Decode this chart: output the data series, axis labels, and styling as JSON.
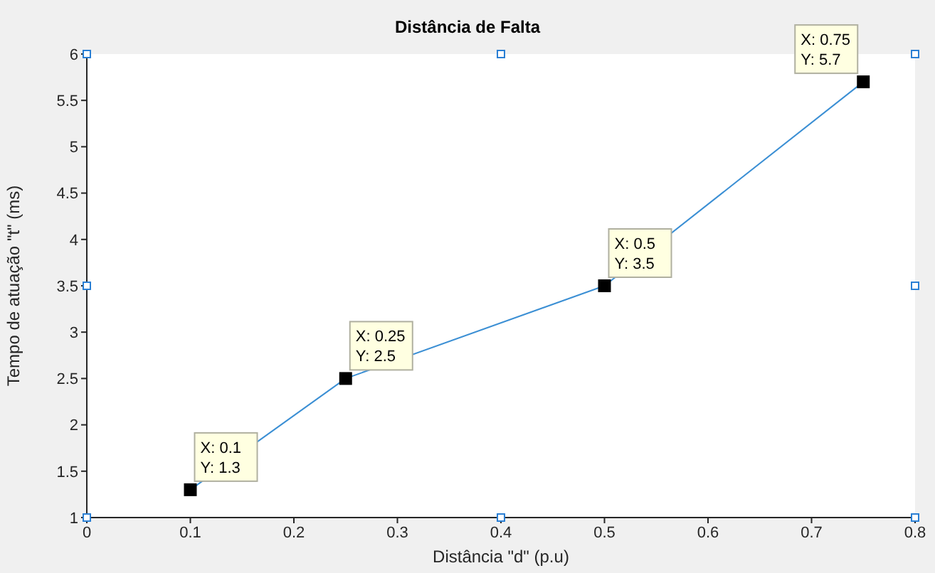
{
  "chart_data": {
    "type": "line",
    "title": "Distância de Falta",
    "xlabel": "Distância \"d\" (p.u)",
    "ylabel": "Tempo de atuação \"t\" (ms)",
    "x": [
      0.1,
      0.25,
      0.5,
      0.75
    ],
    "series": [
      {
        "color": "#3b8fd4",
        "values": [
          1.3,
          2.5,
          3.5,
          5.7
        ]
      }
    ],
    "xlim": [
      0,
      0.8
    ],
    "xticks": [
      0,
      0.1,
      0.2,
      0.3,
      0.4,
      0.5,
      0.6,
      0.7,
      0.8
    ],
    "ylim": [
      1,
      6
    ],
    "yticks": [
      1,
      1.5,
      2,
      2.5,
      3,
      3.5,
      4,
      4.5,
      5,
      5.5,
      6
    ],
    "grid": false,
    "legend": false,
    "marker": "square",
    "line_style": "solid",
    "annotations": [
      {
        "text": "X: 0.1\nY: 1.3",
        "x": 0.1,
        "y": 1.3
      },
      {
        "text": "X: 0.25\nY: 2.5",
        "x": 0.25,
        "y": 2.5
      },
      {
        "text": "X: 0.5\nY: 3.5",
        "x": 0.5,
        "y": 3.5
      },
      {
        "text": "X: 0.75\nY: 5.7",
        "x": 0.75,
        "y": 5.7
      }
    ]
  }
}
